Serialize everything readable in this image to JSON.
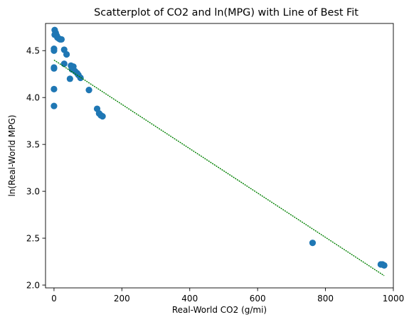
{
  "chart_data": {
    "type": "scatter",
    "title": "Scatterplot of CO2 and ln(MPG) with Line of Best Fit",
    "xlabel": "Real-World CO2 (g/mi)",
    "ylabel": "ln(Real-World MPG)",
    "xlim": [
      -25,
      1000
    ],
    "ylim": [
      1.97,
      4.79
    ],
    "xticks": [
      0,
      200,
      400,
      600,
      800,
      1000
    ],
    "xtick_labels": [
      "0",
      "200",
      "400",
      "600",
      "800",
      "1000"
    ],
    "yticks": [
      2.0,
      2.5,
      3.0,
      3.5,
      4.0,
      4.5
    ],
    "ytick_labels": [
      "2.0",
      "2.5",
      "3.0",
      "3.5",
      "4.0",
      "4.5"
    ],
    "grid": false,
    "legend": false,
    "series": [
      {
        "kind": "points",
        "color": "#1f77b4",
        "points": [
          {
            "x": 2,
            "y": 4.72
          },
          {
            "x": 2,
            "y": 4.67
          },
          {
            "x": 5,
            "y": 4.69
          },
          {
            "x": 8,
            "y": 4.66
          },
          {
            "x": 10,
            "y": 4.64
          },
          {
            "x": 14,
            "y": 4.63
          },
          {
            "x": 18,
            "y": 4.62
          },
          {
            "x": 22,
            "y": 4.62
          },
          {
            "x": 0,
            "y": 4.52
          },
          {
            "x": 0,
            "y": 4.5
          },
          {
            "x": 0,
            "y": 4.32
          },
          {
            "x": 0,
            "y": 4.31
          },
          {
            "x": 0,
            "y": 4.09
          },
          {
            "x": 0,
            "y": 3.91
          },
          {
            "x": 30,
            "y": 4.51
          },
          {
            "x": 37,
            "y": 4.46
          },
          {
            "x": 30,
            "y": 4.36
          },
          {
            "x": 50,
            "y": 4.34
          },
          {
            "x": 57,
            "y": 4.33
          },
          {
            "x": 53,
            "y": 4.3
          },
          {
            "x": 62,
            "y": 4.28
          },
          {
            "x": 68,
            "y": 4.26
          },
          {
            "x": 72,
            "y": 4.24
          },
          {
            "x": 78,
            "y": 4.21
          },
          {
            "x": 47,
            "y": 4.2
          },
          {
            "x": 103,
            "y": 4.08
          },
          {
            "x": 127,
            "y": 3.88
          },
          {
            "x": 133,
            "y": 3.83
          },
          {
            "x": 138,
            "y": 3.81
          },
          {
            "x": 143,
            "y": 3.8
          },
          {
            "x": 762,
            "y": 2.45
          },
          {
            "x": 963,
            "y": 2.22
          },
          {
            "x": 968,
            "y": 2.22
          },
          {
            "x": 973,
            "y": 2.21
          }
        ]
      },
      {
        "kind": "line",
        "color": "#008000",
        "style": "dashed",
        "start": {
          "x": 0,
          "y": 4.4
        },
        "end": {
          "x": 973,
          "y": 2.1
        }
      }
    ]
  }
}
